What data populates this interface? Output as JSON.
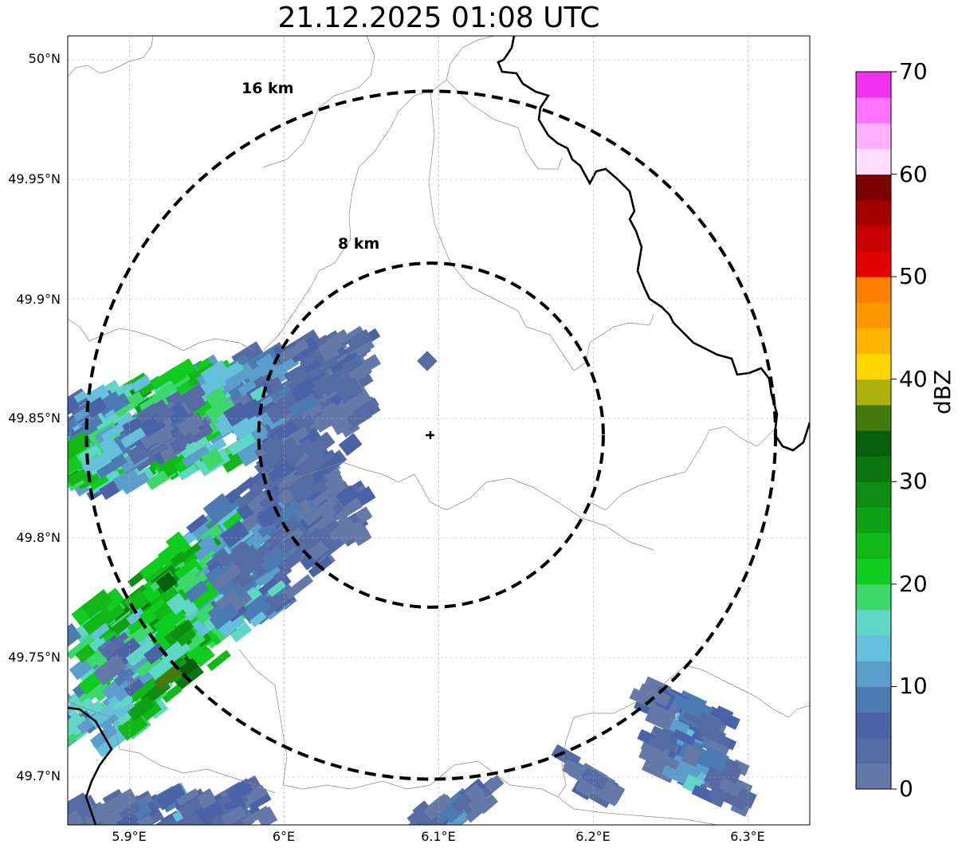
{
  "title": "21.12.2025 01:08 UTC",
  "lat_ticks": [
    "50°N",
    "49.95°N",
    "49.9°N",
    "49.85°N",
    "49.8°N",
    "49.75°N",
    "49.7°N"
  ],
  "lon_ticks": [
    "5.9°E",
    "6°E",
    "6.1°E",
    "6.2°E",
    "6.3°E"
  ],
  "map_extent": {
    "lon": [
      5.86,
      6.34
    ],
    "lat": [
      49.68,
      50.01
    ]
  },
  "radar_center": {
    "lon": 6.095,
    "lat": 49.843
  },
  "range_rings": [
    {
      "label": "8 km",
      "radius_km": 8
    },
    {
      "label": "16 km",
      "radius_km": 16
    }
  ],
  "colorbar": {
    "label": "dBZ",
    "ticks": [
      "0",
      "10",
      "20",
      "30",
      "40",
      "50",
      "60",
      "70"
    ],
    "min": 0,
    "max": 70,
    "step": 2.5,
    "colors": [
      "#6479a8",
      "#566aa3",
      "#4963a6",
      "#4c7bb2",
      "#5b9ecb",
      "#65c0dc",
      "#60d6c4",
      "#3cd86a",
      "#10cc1f",
      "#12b818",
      "#0ea116",
      "#0f8c14",
      "#0b7510",
      "#065f0c",
      "#447a0c",
      "#aeb10c",
      "#fed600",
      "#ffb400",
      "#ff9700",
      "#ff7f00",
      "#e00000",
      "#c60000",
      "#a50000",
      "#7c0000",
      "#ffdfff",
      "#ffb0ff",
      "#ff73ff",
      "#f032f0"
    ]
  },
  "echo_clusters": [
    {
      "name": "west-band-north",
      "level_dbz": [
        0,
        27
      ]
    },
    {
      "name": "west-band-south",
      "level_dbz": [
        0,
        32
      ]
    },
    {
      "name": "south-east-cells",
      "level_dbz": [
        0,
        12
      ]
    }
  ]
}
